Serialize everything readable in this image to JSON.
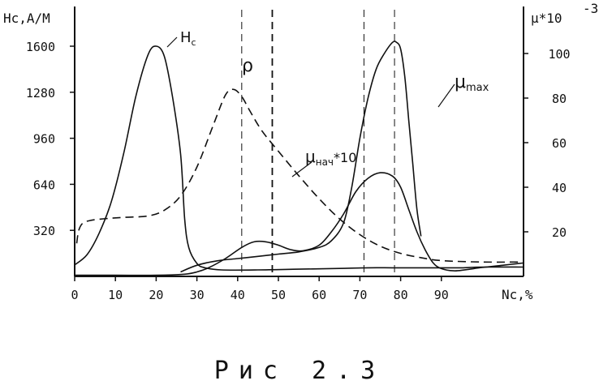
{
  "chart_data": {
    "type": "line",
    "x_axis": {
      "label": "Nc,%",
      "ticks": [
        "0",
        "10",
        "20",
        "30",
        "40",
        "50",
        "60",
        "70",
        "80",
        "90"
      ],
      "range": [
        0,
        110
      ]
    },
    "y_left": {
      "label": "Hc,A/M",
      "ticks": [
        "320",
        "640",
        "960",
        "1280",
        "1600"
      ],
      "range": [
        0,
        1900
      ]
    },
    "y_right": {
      "label": "μ*10",
      "label_exp": "-3",
      "ticks": [
        "20",
        "40",
        "60",
        "80",
        "100"
      ],
      "range": [
        0,
        120
      ]
    },
    "guides": [
      41,
      48.5,
      71,
      78.5
    ],
    "series": [
      {
        "name": "Hc",
        "style": "solid",
        "x": [
          0,
          3,
          6,
          9,
          12,
          15,
          18,
          20,
          22,
          24,
          26,
          27,
          28,
          30,
          32,
          36,
          45,
          55,
          65,
          72,
          78,
          84,
          90,
          95,
          100,
          110
        ],
        "y": [
          80,
          150,
          300,
          520,
          850,
          1250,
          1540,
          1600,
          1530,
          1250,
          850,
          400,
          200,
          90,
          60,
          45,
          45,
          50,
          55,
          60,
          60,
          60,
          60,
          60,
          65,
          65
        ]
      },
      {
        "name": "ρ",
        "style": "dashed",
        "x": [
          0.5,
          1,
          2,
          4,
          7,
          12,
          18,
          22,
          26,
          30,
          34,
          37,
          39,
          41,
          43,
          46,
          50,
          55,
          60,
          65,
          70,
          75,
          80,
          85,
          90,
          100,
          110
        ],
        "y": [
          230,
          320,
          370,
          390,
          400,
          410,
          420,
          460,
          560,
          760,
          1050,
          1260,
          1300,
          1250,
          1150,
          1010,
          870,
          700,
          540,
          400,
          290,
          210,
          160,
          130,
          110,
          100,
          100
        ]
      },
      {
        "name": "μнач*10",
        "style": "solid",
        "x": [
          0,
          10,
          20,
          27,
          30,
          33,
          37,
          41,
          44,
          47,
          50,
          53,
          56,
          60,
          63,
          66,
          69,
          72,
          75,
          78,
          80,
          82,
          84,
          86,
          88,
          90,
          93,
          96,
          100,
          105,
          110
        ],
        "y": [
          0.5,
          0.5,
          0.5,
          1,
          2,
          4,
          8,
          13,
          15.5,
          15.5,
          14,
          12,
          11.5,
          14,
          20,
          28,
          38,
          44,
          46.5,
          45,
          40,
          30,
          20,
          12,
          6,
          3.5,
          2.5,
          3,
          4,
          5,
          6
        ]
      },
      {
        "name": "μmax",
        "style": "solid",
        "x": [
          26,
          30,
          35,
          40,
          45,
          50,
          55,
          60,
          63,
          66,
          68,
          70,
          72,
          74,
          76,
          78,
          79,
          80,
          81,
          82,
          83,
          84,
          85
        ],
        "y": [
          2,
          5,
          7,
          8,
          9,
          10,
          11,
          13,
          16,
          24,
          40,
          62,
          80,
          93,
          100,
          105,
          105,
          102,
          90,
          70,
          50,
          30,
          18
        ]
      }
    ],
    "curve_labels": [
      {
        "text": "H",
        "sub": "c"
      },
      {
        "text": "ρ"
      },
      {
        "text": "μ",
        "sub": "нач",
        "suffix": "*10"
      },
      {
        "text": "μ",
        "sub": "max"
      }
    ],
    "caption": "Рис 2.3"
  }
}
